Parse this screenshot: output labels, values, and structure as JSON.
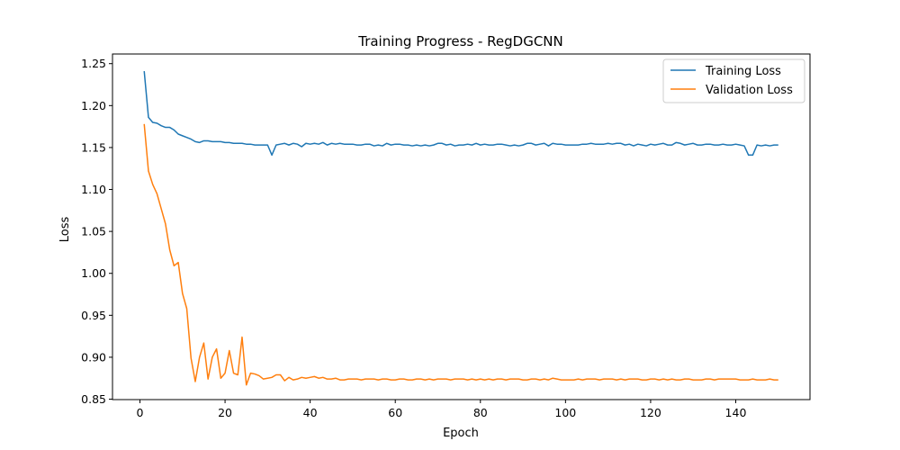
{
  "chart_data": {
    "type": "line",
    "title": "Training Progress - RegDGCNN",
    "xlabel": "Epoch",
    "ylabel": "Loss",
    "xlim": [
      -6.45,
      157.45
    ],
    "ylim": [
      0.8495,
      1.2615
    ],
    "xticks": [
      0,
      20,
      40,
      60,
      80,
      100,
      120,
      140
    ],
    "yticks": [
      0.85,
      0.9,
      0.95,
      1.0,
      1.05,
      1.1,
      1.15,
      1.2,
      1.25
    ],
    "xtick_labels": [
      "0",
      "20",
      "40",
      "60",
      "80",
      "100",
      "120",
      "140"
    ],
    "ytick_labels": [
      "0.85",
      "0.90",
      "0.95",
      "1.00",
      "1.05",
      "1.10",
      "1.15",
      "1.20",
      "1.25"
    ],
    "grid": false,
    "legend_position": "top-right",
    "series": [
      {
        "name": "Training Loss",
        "color": "#1f77b4",
        "x": [
          1,
          2,
          3,
          4,
          5,
          6,
          7,
          8,
          9,
          10,
          11,
          12,
          13,
          14,
          15,
          16,
          17,
          18,
          19,
          20,
          21,
          22,
          23,
          24,
          25,
          26,
          27,
          28,
          29,
          30,
          31,
          32,
          33,
          34,
          35,
          36,
          37,
          38,
          39,
          40,
          41,
          42,
          43,
          44,
          45,
          46,
          47,
          48,
          49,
          50,
          51,
          52,
          53,
          54,
          55,
          56,
          57,
          58,
          59,
          60,
          61,
          62,
          63,
          64,
          65,
          66,
          67,
          68,
          69,
          70,
          71,
          72,
          73,
          74,
          75,
          76,
          77,
          78,
          79,
          80,
          81,
          82,
          83,
          84,
          85,
          86,
          87,
          88,
          89,
          90,
          91,
          92,
          93,
          94,
          95,
          96,
          97,
          98,
          99,
          100,
          101,
          102,
          103,
          104,
          105,
          106,
          107,
          108,
          109,
          110,
          111,
          112,
          113,
          114,
          115,
          116,
          117,
          118,
          119,
          120,
          121,
          122,
          123,
          124,
          125,
          126,
          127,
          128,
          129,
          130,
          131,
          132,
          133,
          134,
          135,
          136,
          137,
          138,
          139,
          140,
          141,
          142,
          143,
          144,
          145,
          146,
          147,
          148,
          149,
          150
        ],
        "y": [
          1.241,
          1.186,
          1.18,
          1.179,
          1.176,
          1.174,
          1.174,
          1.171,
          1.166,
          1.164,
          1.162,
          1.16,
          1.157,
          1.156,
          1.158,
          1.158,
          1.157,
          1.157,
          1.157,
          1.156,
          1.156,
          1.155,
          1.155,
          1.155,
          1.154,
          1.154,
          1.153,
          1.153,
          1.153,
          1.153,
          1.141,
          1.153,
          1.154,
          1.155,
          1.153,
          1.155,
          1.154,
          1.151,
          1.155,
          1.154,
          1.155,
          1.154,
          1.156,
          1.153,
          1.155,
          1.154,
          1.155,
          1.154,
          1.154,
          1.154,
          1.153,
          1.153,
          1.154,
          1.154,
          1.152,
          1.153,
          1.152,
          1.155,
          1.153,
          1.154,
          1.154,
          1.153,
          1.153,
          1.152,
          1.153,
          1.152,
          1.153,
          1.152,
          1.153,
          1.155,
          1.155,
          1.153,
          1.154,
          1.152,
          1.153,
          1.153,
          1.154,
          1.153,
          1.155,
          1.153,
          1.154,
          1.153,
          1.153,
          1.154,
          1.154,
          1.153,
          1.152,
          1.153,
          1.152,
          1.153,
          1.155,
          1.155,
          1.153,
          1.154,
          1.155,
          1.152,
          1.155,
          1.154,
          1.154,
          1.153,
          1.153,
          1.153,
          1.153,
          1.154,
          1.154,
          1.155,
          1.154,
          1.154,
          1.154,
          1.155,
          1.154,
          1.155,
          1.155,
          1.153,
          1.154,
          1.152,
          1.154,
          1.153,
          1.152,
          1.154,
          1.153,
          1.154,
          1.155,
          1.153,
          1.153,
          1.156,
          1.155,
          1.153,
          1.154,
          1.155,
          1.153,
          1.153,
          1.154,
          1.154,
          1.153,
          1.153,
          1.154,
          1.153,
          1.153,
          1.154,
          1.153,
          1.152,
          1.141,
          1.141,
          1.153,
          1.152,
          1.153,
          1.152,
          1.153,
          1.153
        ]
      },
      {
        "name": "Validation Loss",
        "color": "#ff7f0e",
        "x": [
          1,
          2,
          3,
          4,
          5,
          6,
          7,
          8,
          9,
          10,
          11,
          12,
          13,
          14,
          15,
          16,
          17,
          18,
          19,
          20,
          21,
          22,
          23,
          24,
          25,
          26,
          27,
          28,
          29,
          30,
          31,
          32,
          33,
          34,
          35,
          36,
          37,
          38,
          39,
          40,
          41,
          42,
          43,
          44,
          45,
          46,
          47,
          48,
          49,
          50,
          51,
          52,
          53,
          54,
          55,
          56,
          57,
          58,
          59,
          60,
          61,
          62,
          63,
          64,
          65,
          66,
          67,
          68,
          69,
          70,
          71,
          72,
          73,
          74,
          75,
          76,
          77,
          78,
          79,
          80,
          81,
          82,
          83,
          84,
          85,
          86,
          87,
          88,
          89,
          90,
          91,
          92,
          93,
          94,
          95,
          96,
          97,
          98,
          99,
          100,
          101,
          102,
          103,
          104,
          105,
          106,
          107,
          108,
          109,
          110,
          111,
          112,
          113,
          114,
          115,
          116,
          117,
          118,
          119,
          120,
          121,
          122,
          123,
          124,
          125,
          126,
          127,
          128,
          129,
          130,
          131,
          132,
          133,
          134,
          135,
          136,
          137,
          138,
          139,
          140,
          141,
          142,
          143,
          144,
          145,
          146,
          147,
          148,
          149,
          150
        ],
        "y": [
          1.178,
          1.122,
          1.106,
          1.095,
          1.077,
          1.059,
          1.028,
          1.009,
          1.013,
          0.976,
          0.958,
          0.899,
          0.871,
          0.9,
          0.917,
          0.874,
          0.9,
          0.91,
          0.875,
          0.881,
          0.908,
          0.881,
          0.879,
          0.924,
          0.867,
          0.881,
          0.88,
          0.878,
          0.874,
          0.875,
          0.876,
          0.879,
          0.879,
          0.872,
          0.876,
          0.873,
          0.874,
          0.876,
          0.875,
          0.876,
          0.877,
          0.875,
          0.876,
          0.874,
          0.874,
          0.875,
          0.873,
          0.873,
          0.874,
          0.874,
          0.874,
          0.873,
          0.874,
          0.874,
          0.874,
          0.873,
          0.874,
          0.874,
          0.873,
          0.873,
          0.874,
          0.874,
          0.873,
          0.873,
          0.874,
          0.874,
          0.873,
          0.874,
          0.873,
          0.874,
          0.874,
          0.874,
          0.873,
          0.874,
          0.874,
          0.874,
          0.873,
          0.874,
          0.873,
          0.874,
          0.873,
          0.874,
          0.873,
          0.874,
          0.874,
          0.873,
          0.874,
          0.874,
          0.874,
          0.873,
          0.873,
          0.874,
          0.874,
          0.873,
          0.874,
          0.873,
          0.875,
          0.874,
          0.873,
          0.873,
          0.873,
          0.873,
          0.874,
          0.873,
          0.874,
          0.874,
          0.874,
          0.873,
          0.874,
          0.874,
          0.874,
          0.873,
          0.874,
          0.873,
          0.874,
          0.874,
          0.874,
          0.873,
          0.873,
          0.874,
          0.874,
          0.873,
          0.874,
          0.873,
          0.874,
          0.873,
          0.873,
          0.874,
          0.874,
          0.873,
          0.873,
          0.873,
          0.874,
          0.874,
          0.873,
          0.874,
          0.874,
          0.874,
          0.874,
          0.874,
          0.873,
          0.873,
          0.873,
          0.874,
          0.873,
          0.873,
          0.873,
          0.874,
          0.873,
          0.873
        ]
      }
    ]
  }
}
